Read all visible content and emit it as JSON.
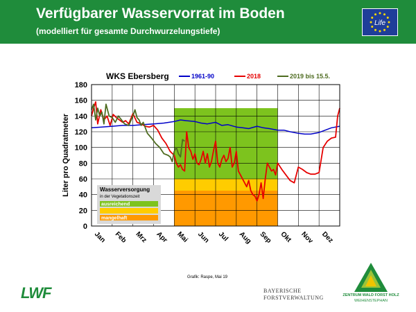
{
  "header": {
    "title": "Verfügbarer Wasservorrat im Boden",
    "subtitle": "(modelliert für gesamte Durchwurzelungstiefe)",
    "eu_logo_text": "Life"
  },
  "colors": {
    "header_bg": "#1f8c3b",
    "series_1961_90": "#0000c8",
    "series_2018": "#e60000",
    "series_2019": "#4d6b1f",
    "zone_ausreichend": "#7dc31e",
    "zone_eingeschraenkt": "#ffcc00",
    "zone_mangelhaft": "#ff9900"
  },
  "chart_data": {
    "type": "line",
    "title": "WKS Ebersberg",
    "ylabel": "Liter pro Quadratmeter",
    "xlabel": "",
    "ylim": [
      0,
      180
    ],
    "yticks": [
      0,
      20,
      40,
      60,
      80,
      100,
      120,
      140,
      160,
      180
    ],
    "x_unit": "month",
    "xlim": [
      0,
      12
    ],
    "month_labels": [
      "Jan",
      "Feb",
      "Mrz",
      "Apr",
      "Mai",
      "Jun",
      "Jul",
      "Aug",
      "Sep",
      "Okt",
      "Nov",
      "Dez"
    ],
    "grid": true,
    "legend_placement": "top",
    "zones": {
      "x_range": [
        4,
        9
      ],
      "bands": [
        {
          "name": "ausreichend",
          "from": 60,
          "to": 150
        },
        {
          "name": "eingeschränkt",
          "from": 45,
          "to": 60
        },
        {
          "name": "mangelhaft",
          "from": 0,
          "to": 45
        }
      ]
    },
    "zone_legend": {
      "title": "Wasserversorgung",
      "subtitle": "in der Vegetationszeit",
      "items": [
        "ausreichend",
        "eingeschränkt",
        "mangelhaft"
      ]
    },
    "series": [
      {
        "name": "1961-90",
        "x": [
          0,
          0.5,
          1,
          1.5,
          2,
          2.5,
          3,
          3.5,
          4,
          4.3,
          4.6,
          5,
          5.3,
          5.6,
          6,
          6.3,
          6.6,
          7,
          7.3,
          7.6,
          8,
          8.3,
          8.6,
          9,
          9.3,
          9.6,
          10,
          10.3,
          10.6,
          11,
          11.3,
          11.6,
          12
        ],
        "y": [
          125,
          126,
          127,
          128,
          128,
          129,
          130,
          131,
          133,
          135,
          134,
          133,
          131,
          130,
          132,
          128,
          129,
          126,
          125,
          124,
          127,
          125,
          124,
          122,
          122,
          120,
          118,
          117,
          117,
          119,
          122,
          125,
          127
        ]
      },
      {
        "name": "2018",
        "x": [
          0,
          0.1,
          0.2,
          0.3,
          0.45,
          0.6,
          0.75,
          0.9,
          1.05,
          1.2,
          1.35,
          1.5,
          1.65,
          1.8,
          2.0,
          2.2,
          2.4,
          2.6,
          2.8,
          3.0,
          3.2,
          3.4,
          3.6,
          3.8,
          4.0,
          4.1,
          4.2,
          4.3,
          4.4,
          4.5,
          4.6,
          4.7,
          4.8,
          4.9,
          5.0,
          5.1,
          5.2,
          5.3,
          5.4,
          5.5,
          5.6,
          5.7,
          5.8,
          5.9,
          6.0,
          6.1,
          6.2,
          6.3,
          6.4,
          6.5,
          6.6,
          6.7,
          6.8,
          6.9,
          7.0,
          7.1,
          7.2,
          7.3,
          7.4,
          7.5,
          7.6,
          7.7,
          7.8,
          7.9,
          8.0,
          8.1,
          8.2,
          8.3,
          8.4,
          8.5,
          8.6,
          8.7,
          8.8,
          8.9,
          9.0,
          9.2,
          9.4,
          9.6,
          9.8,
          10.0,
          10.2,
          10.4,
          10.6,
          10.8,
          11.0,
          11.2,
          11.4,
          11.6,
          11.8,
          11.9,
          12.0
        ],
        "y": [
          140,
          150,
          158,
          130,
          148,
          135,
          140,
          128,
          142,
          138,
          135,
          132,
          134,
          130,
          143,
          132,
          130,
          127,
          126,
          128,
          122,
          112,
          105,
          95,
          90,
          80,
          75,
          78,
          72,
          70,
          120,
          100,
          95,
          85,
          92,
          80,
          78,
          85,
          95,
          80,
          92,
          75,
          82,
          96,
          108,
          80,
          75,
          85,
          90,
          82,
          86,
          100,
          75,
          80,
          95,
          70,
          65,
          60,
          55,
          50,
          58,
          45,
          40,
          38,
          32,
          40,
          55,
          35,
          60,
          80,
          75,
          70,
          72,
          65,
          80,
          72,
          65,
          58,
          55,
          75,
          72,
          68,
          66,
          66,
          68,
          100,
          108,
          112,
          113,
          140,
          150
        ]
      },
      {
        "name": "2019 bis 15.5.",
        "x": [
          0,
          0.1,
          0.2,
          0.3,
          0.4,
          0.5,
          0.6,
          0.7,
          0.85,
          1.0,
          1.15,
          1.3,
          1.45,
          1.6,
          1.8,
          2.0,
          2.1,
          2.2,
          2.3,
          2.4,
          2.5,
          2.7,
          2.9,
          3.1,
          3.3,
          3.5,
          3.7,
          3.8,
          3.9,
          4.0,
          4.1,
          4.2,
          4.3,
          4.4,
          4.5
        ],
        "y": [
          148,
          155,
          135,
          150,
          140,
          145,
          130,
          155,
          140,
          138,
          132,
          140,
          135,
          130,
          128,
          140,
          148,
          138,
          135,
          128,
          132,
          118,
          112,
          105,
          100,
          92,
          90,
          88,
          82,
          95,
          100,
          92,
          88,
          110,
          108
        ]
      }
    ]
  },
  "footer": {
    "credit": "Grafik: Raspe, Mai 19",
    "lwf_logo": "LWF",
    "bf_line1": "BAYERISCHE",
    "bf_line2": "FORSTVERWALTUNG",
    "zw_line1": "ZENTRUM WALD FORST HOLZ",
    "zw_line2": "WEIHENSTEPHAN"
  }
}
